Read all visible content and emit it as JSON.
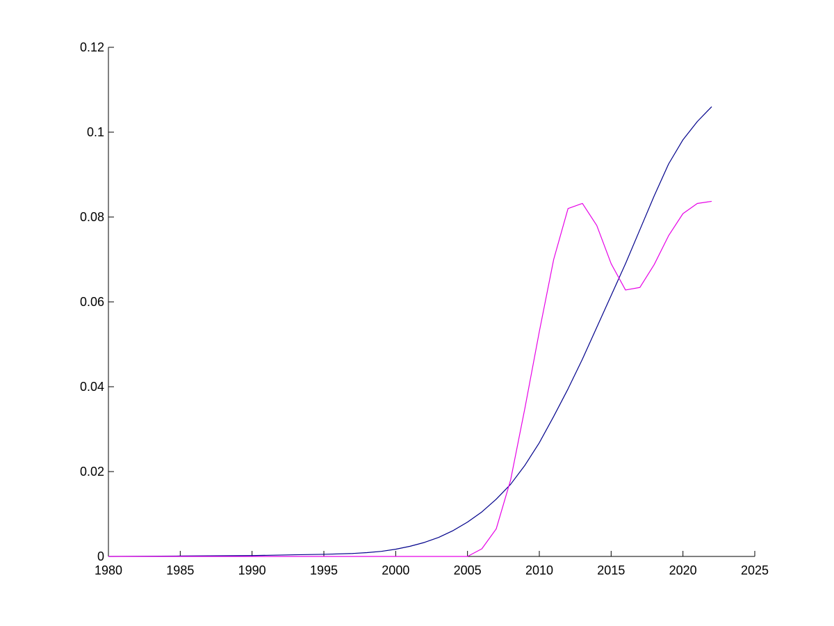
{
  "chart_data": {
    "type": "line",
    "title": "",
    "xlabel": "",
    "ylabel": "",
    "xlim": [
      1980,
      2025
    ],
    "ylim": [
      0,
      0.12
    ],
    "xticks": [
      1980,
      1985,
      1990,
      1995,
      2000,
      2005,
      2010,
      2015,
      2020,
      2025
    ],
    "xtick_labels": [
      "1980",
      "1985",
      "1990",
      "1995",
      "2000",
      "2005",
      "2010",
      "2015",
      "2020",
      "2025"
    ],
    "yticks": [
      0,
      0.02,
      0.04,
      0.06,
      0.08,
      0.1,
      0.12
    ],
    "ytick_labels": [
      "0",
      "0.02",
      "0.04",
      "0.06",
      "0.08",
      "0.1",
      "0.12"
    ],
    "grid": false,
    "legend": "none",
    "series": [
      {
        "color": "#00008b",
        "x": [
          1980,
          1985,
          1990,
          1993,
          1995,
          1997,
          1998,
          1999,
          2000,
          2001,
          2002,
          2003,
          2004,
          2005,
          2006,
          2007,
          2008,
          2009,
          2010,
          2011,
          2012,
          2013,
          2014,
          2015,
          2016,
          2017,
          2018,
          2019,
          2020,
          2021,
          2022
        ],
        "y": [
          0,
          0.0001,
          0.0002,
          0.0004,
          0.0005,
          0.0007,
          0.0009,
          0.0012,
          0.0017,
          0.0024,
          0.0033,
          0.0045,
          0.0061,
          0.0081,
          0.0105,
          0.0135,
          0.017,
          0.0215,
          0.0268,
          0.033,
          0.0395,
          0.0465,
          0.054,
          0.0615,
          0.069,
          0.077,
          0.085,
          0.0925,
          0.0982,
          0.1025,
          0.106
        ]
      },
      {
        "color": "#e600e6",
        "x": [
          1980,
          2005,
          2006,
          2007,
          2008,
          2009,
          2010,
          2011,
          2012,
          2013,
          2014,
          2015,
          2016,
          2017,
          2018,
          2019,
          2020,
          2021,
          2022
        ],
        "y": [
          0,
          0,
          0.0018,
          0.0065,
          0.018,
          0.035,
          0.053,
          0.07,
          0.082,
          0.0832,
          0.078,
          0.069,
          0.0628,
          0.0634,
          0.0688,
          0.0756,
          0.0808,
          0.0832,
          0.0837
        ]
      }
    ]
  }
}
